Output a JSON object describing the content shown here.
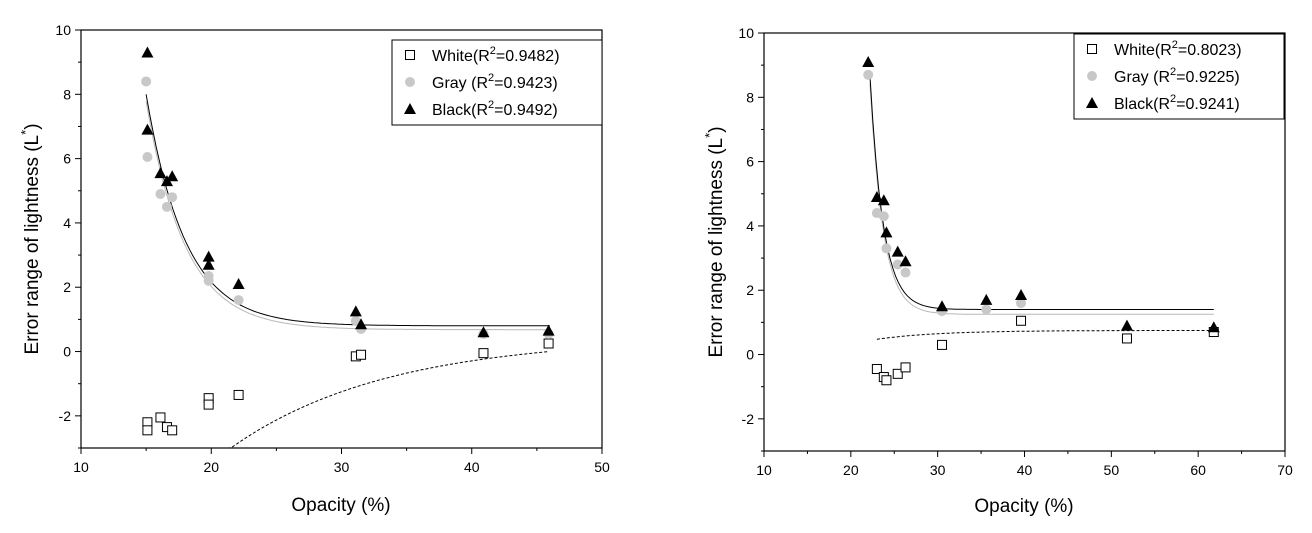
{
  "chart_data": [
    {
      "type": "scatter",
      "title": "",
      "xlabel": "Opacity (%)",
      "ylabel": "Error range of lightness (L*)",
      "xlim": [
        10,
        50
      ],
      "ylim": [
        -3,
        10
      ],
      "xticks": [
        10,
        20,
        30,
        40,
        50
      ],
      "yticks": [
        -2,
        0,
        2,
        4,
        6,
        8,
        10
      ],
      "legend_position": "top-right",
      "series": [
        {
          "name": "White",
          "r2_label": "White(R2=0.9482)",
          "legend_prefix": "White(R",
          "legend_sup": "2",
          "legend_suffix": "=0.9482)",
          "marker": "square-open",
          "color": "#000000",
          "line_style": "dashed",
          "x": [
            15.1,
            15.1,
            16.1,
            16.6,
            17.0,
            19.8,
            19.8,
            22.1,
            31.1,
            31.5,
            40.9,
            45.9
          ],
          "y": [
            -2.2,
            -2.45,
            -2.05,
            -2.35,
            -2.45,
            -1.45,
            -1.65,
            -1.35,
            -0.15,
            -0.1,
            -0.05,
            0.25
          ],
          "fit": {
            "model": "asymptotic",
            "a": 0.45,
            "b": -9.0,
            "k": 0.0833,
            "x_start": 15.1,
            "x_end": 45.9
          }
        },
        {
          "name": "Gray",
          "r2_label": "Gray (R2=0.9423)",
          "legend_prefix": "Gray (R",
          "legend_sup": "2",
          "legend_suffix": "=0.9423)",
          "marker": "circle-filled",
          "color": "#c8c8c8",
          "line_style": "solid",
          "x": [
            15.0,
            15.1,
            16.1,
            16.6,
            17.0,
            19.8,
            19.8,
            22.1,
            31.1,
            31.5,
            40.9,
            45.9
          ],
          "y": [
            8.4,
            6.05,
            4.9,
            4.5,
            4.8,
            2.2,
            2.35,
            1.6,
            0.95,
            0.7,
            0.55,
            0.55
          ],
          "fit": {
            "model": "exponential",
            "a": 0.68,
            "b": 7.1,
            "k": 0.333,
            "x_start": 15.0,
            "x_end": 46.0
          }
        },
        {
          "name": "Black",
          "r2_label": "Black(R2=0.9492)",
          "legend_prefix": "Black(R",
          "legend_sup": "2",
          "legend_suffix": "=0.9492)",
          "marker": "triangle-filled",
          "color": "#000000",
          "line_style": "solid",
          "x": [
            15.1,
            15.1,
            16.1,
            16.6,
            17.0,
            19.8,
            19.8,
            22.1,
            31.1,
            31.5,
            40.9,
            45.9
          ],
          "y": [
            9.3,
            6.9,
            5.55,
            5.3,
            5.45,
            2.95,
            2.7,
            2.1,
            1.25,
            0.85,
            0.6,
            0.65
          ],
          "fit": {
            "model": "exponential",
            "a": 0.8,
            "b": 7.2,
            "k": 0.333,
            "x_start": 15.0,
            "x_end": 46.0
          }
        }
      ]
    },
    {
      "type": "scatter",
      "title": "",
      "xlabel": "Opacity (%)",
      "ylabel": "Error range of lightness (L*)",
      "xlim": [
        10,
        70
      ],
      "ylim": [
        -3,
        10
      ],
      "xticks": [
        10,
        20,
        30,
        40,
        50,
        60,
        70
      ],
      "yticks": [
        -2,
        0,
        2,
        4,
        6,
        8,
        10
      ],
      "legend_position": "top-right",
      "series": [
        {
          "name": "White",
          "r2_label": "White(R2=0.8023)",
          "legend_prefix": "White(R",
          "legend_sup": "2",
          "legend_suffix": "=0.8023)",
          "marker": "square-open",
          "color": "#000000",
          "line_style": "dashed",
          "x": [
            23.0,
            23.8,
            24.1,
            25.4,
            26.3,
            30.5,
            39.6,
            51.8,
            61.8
          ],
          "y": [
            -0.45,
            -0.7,
            -0.8,
            -0.6,
            -0.4,
            0.3,
            1.05,
            0.5,
            0.7
          ],
          "fit": {
            "model": "asymptotic",
            "a": 0.75,
            "b": -1.7,
            "k": 0.14,
            "x_start": 23.0,
            "x_end": 61.8
          }
        },
        {
          "name": "Gray",
          "r2_label": "Gray (R2=0.9225)",
          "legend_prefix": "Gray (R",
          "legend_sup": "2",
          "legend_suffix": "=0.9225)",
          "marker": "circle-filled",
          "color": "#c8c8c8",
          "line_style": "solid",
          "x": [
            22.0,
            23.0,
            23.8,
            24.1,
            25.4,
            26.3,
            30.5,
            35.6,
            39.6
          ],
          "y": [
            8.7,
            4.4,
            4.3,
            3.3,
            2.8,
            2.55,
            1.35,
            1.4,
            1.6
          ],
          "fit": {
            "model": "exponential",
            "a": 1.25,
            "b": 7.2,
            "k": 0.66,
            "x_start": 22.2,
            "x_end": 61.8
          }
        },
        {
          "name": "Black",
          "r2_label": "Black(R2=0.9241)",
          "legend_prefix": "Black(R",
          "legend_sup": "2",
          "legend_suffix": "=0.9241)",
          "marker": "triangle-filled",
          "color": "#000000",
          "line_style": "solid",
          "x": [
            22.0,
            23.0,
            23.8,
            24.1,
            25.4,
            26.3,
            30.5,
            35.6,
            39.6,
            51.8,
            61.8
          ],
          "y": [
            9.1,
            4.9,
            4.8,
            3.8,
            3.2,
            2.9,
            1.5,
            1.7,
            1.85,
            0.9,
            0.85
          ],
          "fit": {
            "model": "exponential",
            "a": 1.4,
            "b": 7.3,
            "k": 0.66,
            "x_start": 22.2,
            "x_end": 61.8
          }
        }
      ]
    }
  ]
}
